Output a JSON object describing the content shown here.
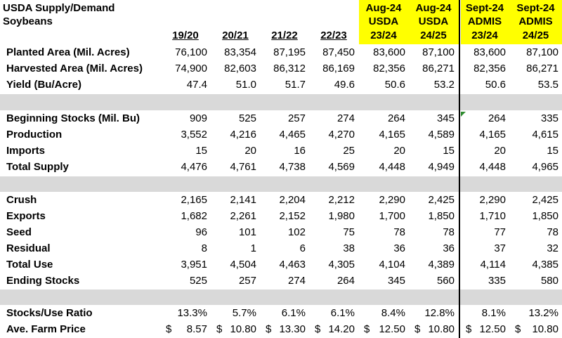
{
  "header": {
    "title_lines": [
      "USDA Supply/Demand",
      "Soybeans"
    ],
    "columns": [
      {
        "lines": [
          "19/20"
        ]
      },
      {
        "lines": [
          "20/21"
        ]
      },
      {
        "lines": [
          "21/22"
        ]
      },
      {
        "lines": [
          "22/23"
        ]
      },
      {
        "lines": [
          "Aug-24",
          "USDA",
          "23/24"
        ]
      },
      {
        "lines": [
          "Aug-24",
          "USDA",
          "24/25"
        ]
      },
      {
        "lines": [
          "Sept-24",
          "ADMIS",
          "23/24"
        ]
      },
      {
        "lines": [
          "Sept-24",
          "ADMIS",
          "24/25"
        ]
      }
    ]
  },
  "groups": [
    [
      {
        "label": "Planted Area (Mil. Acres)",
        "cells": [
          "76,100",
          "83,354",
          "87,195",
          "87,450",
          "83,600",
          "87,100",
          "83,600",
          "87,100"
        ]
      },
      {
        "label": "Harvested Area (Mil. Acres)",
        "cells": [
          "74,900",
          "82,603",
          "86,312",
          "86,169",
          "82,356",
          "86,271",
          "82,356",
          "86,271"
        ]
      },
      {
        "label": "Yield (Bu/Acre)",
        "cells": [
          "47.4",
          "51.0",
          "51.7",
          "49.6",
          "50.6",
          "53.2",
          "50.6",
          "53.5"
        ]
      }
    ],
    [
      {
        "label": "Beginning Stocks (Mil. Bu)",
        "cells": [
          "909",
          "525",
          "257",
          "274",
          "264",
          "345",
          "264",
          "335"
        ]
      },
      {
        "label": "Production",
        "cells": [
          "3,552",
          "4,216",
          "4,465",
          "4,270",
          "4,165",
          "4,589",
          "4,165",
          "4,615"
        ]
      },
      {
        "label": "Imports",
        "cells": [
          "15",
          "20",
          "16",
          "25",
          "20",
          "15",
          "20",
          "15"
        ]
      },
      {
        "label": "Total Supply",
        "cells": [
          "4,476",
          "4,761",
          "4,738",
          "4,569",
          "4,448",
          "4,949",
          "4,448",
          "4,965"
        ]
      }
    ],
    [
      {
        "label": "Crush",
        "cells": [
          "2,165",
          "2,141",
          "2,204",
          "2,212",
          "2,290",
          "2,425",
          "2,290",
          "2,425"
        ]
      },
      {
        "label": "Exports",
        "cells": [
          "1,682",
          "2,261",
          "2,152",
          "1,980",
          "1,700",
          "1,850",
          "1,710",
          "1,850"
        ]
      },
      {
        "label": "Seed",
        "cells": [
          "96",
          "101",
          "102",
          "75",
          "78",
          "78",
          "77",
          "78"
        ]
      },
      {
        "label": "Residual",
        "cells": [
          "8",
          "1",
          "6",
          "38",
          "36",
          "36",
          "37",
          "32"
        ]
      },
      {
        "label": "Total Use",
        "cells": [
          "3,951",
          "4,504",
          "4,463",
          "4,305",
          "4,104",
          "4,389",
          "4,114",
          "4,385"
        ]
      },
      {
        "label": "Ending Stocks",
        "cells": [
          "525",
          "257",
          "274",
          "264",
          "345",
          "560",
          "335",
          "580"
        ]
      }
    ],
    [
      {
        "label": "Stocks/Use Ratio",
        "cells": [
          "13.3%",
          "5.7%",
          "6.1%",
          "6.1%",
          "8.4%",
          "12.8%",
          "8.1%",
          "13.2%"
        ]
      },
      {
        "label": "Ave. Farm Price",
        "cells": [
          [
            "$",
            "8.57"
          ],
          [
            "$",
            "10.80"
          ],
          [
            "$",
            "13.30"
          ],
          [
            "$",
            "14.20"
          ],
          [
            "$",
            "12.50"
          ],
          [
            "$",
            "10.80"
          ],
          [
            "$",
            "12.50"
          ],
          [
            "$",
            "10.80"
          ]
        ]
      }
    ]
  ]
}
